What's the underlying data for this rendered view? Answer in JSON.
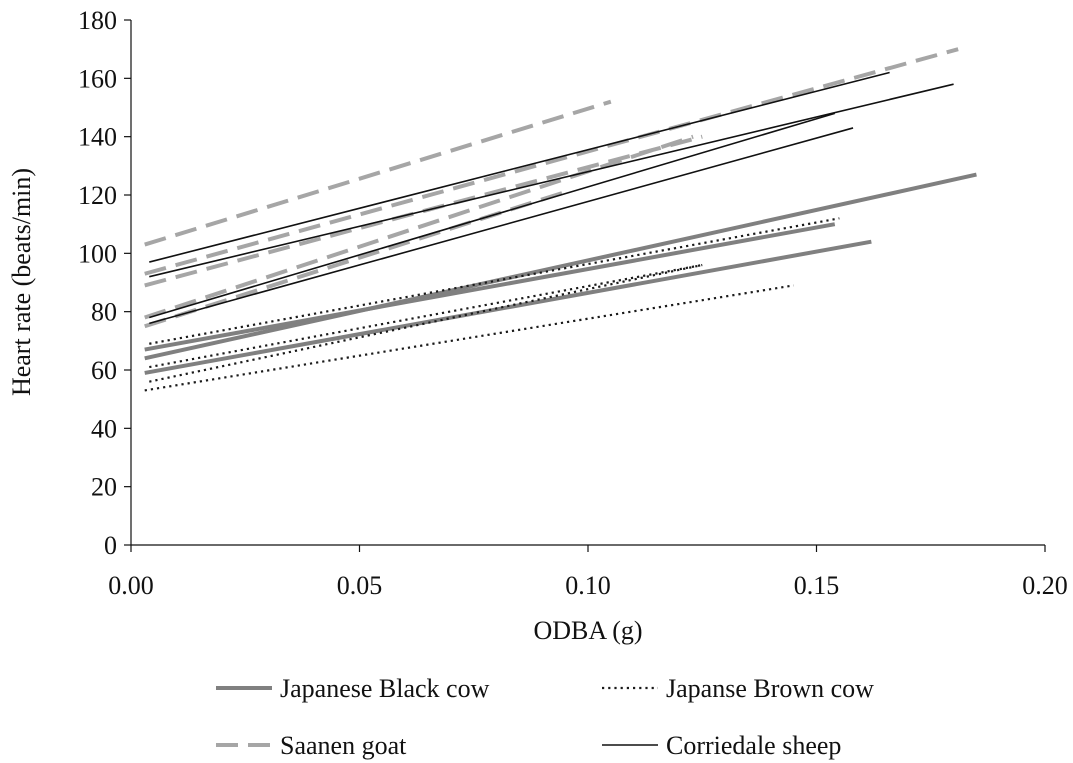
{
  "chart_data": {
    "type": "line",
    "xlabel": "ODBA (g)",
    "ylabel": "Heart rate (beats/min)",
    "xlim": [
      0,
      0.2
    ],
    "ylim": [
      0,
      180
    ],
    "x_ticks": [
      "0.00",
      "0.05",
      "0.10",
      "0.15",
      "0.20"
    ],
    "y_ticks": [
      "0",
      "20",
      "40",
      "60",
      "80",
      "100",
      "120",
      "140",
      "160",
      "180"
    ],
    "grid": false,
    "legend_position": "bottom",
    "groups": [
      {
        "name": "Japanese Black cow",
        "style": "solid-thick",
        "color": "#808080",
        "lines": [
          {
            "x": [
              0.003,
              0.185
            ],
            "y": [
              64,
              127
            ]
          },
          {
            "x": [
              0.003,
              0.154
            ],
            "y": [
              67,
              110
            ]
          },
          {
            "x": [
              0.003,
              0.162
            ],
            "y": [
              59,
              104
            ]
          }
        ]
      },
      {
        "name": "Japanse Brown cow",
        "style": "dotted",
        "color": "#1a1a1a",
        "lines": [
          {
            "x": [
              0.004,
              0.155
            ],
            "y": [
              69,
              112
            ]
          },
          {
            "x": [
              0.004,
              0.125
            ],
            "y": [
              61,
              96
            ]
          },
          {
            "x": [
              0.004,
              0.125
            ],
            "y": [
              56,
              96
            ]
          },
          {
            "x": [
              0.003,
              0.145
            ],
            "y": [
              53,
              89
            ]
          }
        ]
      },
      {
        "name": "Saanen goat",
        "style": "dashed",
        "color": "#a6a6a6",
        "lines": [
          {
            "x": [
              0.003,
              0.105
            ],
            "y": [
              103,
              152
            ]
          },
          {
            "x": [
              0.003,
              0.181
            ],
            "y": [
              93,
              170
            ]
          },
          {
            "x": [
              0.003,
              0.125
            ],
            "y": [
              89,
              140
            ]
          },
          {
            "x": [
              0.003,
              0.123
            ],
            "y": [
              78,
              140
            ]
          },
          {
            "x": [
              0.003,
              0.095
            ],
            "y": [
              75,
              121
            ]
          }
        ]
      },
      {
        "name": "Corriedale sheep",
        "style": "solid-thin",
        "color": "#111111",
        "lines": [
          {
            "x": [
              0.004,
              0.166
            ],
            "y": [
              97,
              162
            ]
          },
          {
            "x": [
              0.004,
              0.18
            ],
            "y": [
              92,
              158
            ]
          },
          {
            "x": [
              0.004,
              0.154
            ],
            "y": [
              78,
              148
            ]
          },
          {
            "x": [
              0.004,
              0.158
            ],
            "y": [
              76,
              143
            ]
          }
        ]
      }
    ]
  }
}
